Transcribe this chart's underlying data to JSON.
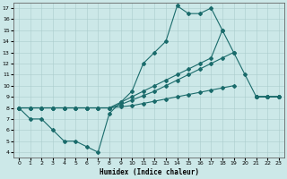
{
  "xlabel": "Humidex (Indice chaleur)",
  "xlim": [
    -0.5,
    23.5
  ],
  "ylim": [
    3.5,
    17.5
  ],
  "xticks": [
    0,
    1,
    2,
    3,
    4,
    5,
    6,
    7,
    8,
    9,
    10,
    11,
    12,
    13,
    14,
    15,
    16,
    17,
    18,
    19,
    20,
    21,
    22,
    23
  ],
  "yticks": [
    4,
    5,
    6,
    7,
    8,
    9,
    10,
    11,
    12,
    13,
    14,
    15,
    16,
    17
  ],
  "background_color": "#cce8e8",
  "line_color": "#1a6b6b",
  "grid_color": "#aacccc",
  "line1_x": [
    0,
    1,
    2,
    3,
    4,
    5,
    6,
    7,
    8,
    9,
    10,
    11,
    12,
    13,
    14,
    15,
    16,
    17,
    18,
    19,
    20,
    21,
    22,
    23
  ],
  "line1_y": [
    8,
    7,
    7,
    6,
    5,
    5,
    4.5,
    4,
    7.5,
    8.5,
    9.5,
    12,
    13,
    14,
    17.2,
    16.5,
    16.5,
    17,
    15,
    13,
    11,
    9,
    9,
    9
  ],
  "line2_x": [
    0,
    1,
    2,
    3,
    4,
    5,
    6,
    7,
    8,
    9,
    10,
    11,
    12,
    13,
    14,
    15,
    16,
    17,
    18,
    19,
    20,
    21,
    22,
    23
  ],
  "line2_y": [
    8,
    8,
    8,
    8,
    8,
    8,
    8,
    8,
    8,
    8.5,
    9,
    9.5,
    10,
    10.5,
    11,
    11.5,
    12,
    12.5,
    15,
    null,
    null,
    9,
    9,
    9
  ],
  "line3_x": [
    0,
    1,
    2,
    3,
    4,
    5,
    6,
    7,
    8,
    9,
    10,
    11,
    12,
    13,
    14,
    15,
    16,
    17,
    18,
    19,
    20,
    21,
    22,
    23
  ],
  "line3_y": [
    8,
    8,
    8,
    8,
    8,
    8,
    8,
    8,
    8,
    8.3,
    8.7,
    9.1,
    9.5,
    10,
    10.5,
    11,
    11.5,
    12,
    12.5,
    13,
    null,
    9,
    9,
    9
  ],
  "line4_x": [
    0,
    1,
    2,
    3,
    4,
    5,
    6,
    7,
    8,
    9,
    10,
    11,
    12,
    13,
    14,
    15,
    16,
    17,
    18,
    19,
    20,
    21,
    22,
    23
  ],
  "line4_y": [
    8,
    8,
    8,
    8,
    8,
    8,
    8,
    8,
    8,
    8.1,
    8.2,
    8.4,
    8.6,
    8.8,
    9.0,
    9.2,
    9.4,
    9.6,
    9.8,
    10.0,
    null,
    9,
    9,
    9
  ]
}
